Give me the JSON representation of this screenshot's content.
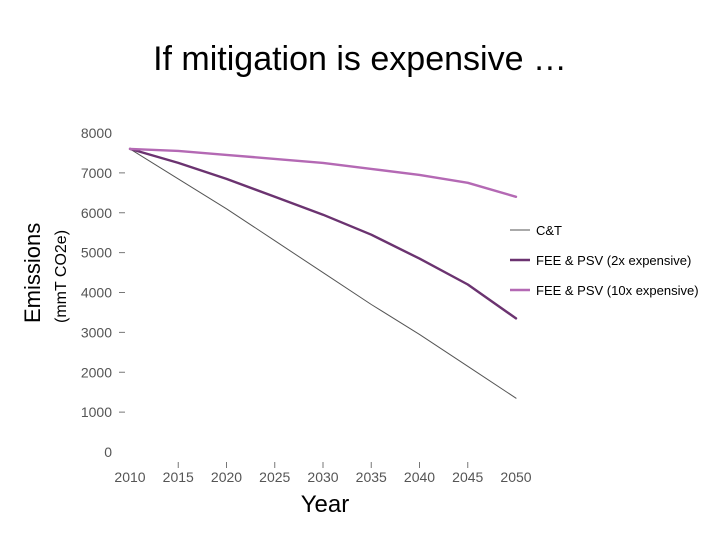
{
  "slide": {
    "title": "If mitigation is expensive …"
  },
  "chart_data": {
    "type": "line",
    "title": "If mitigation is expensive …",
    "xlabel": "Year",
    "ylabel": "Emissions",
    "ylabel_unit": "(mmT CO2e)",
    "xlim": [
      2010,
      2050
    ],
    "ylim": [
      0,
      8000
    ],
    "x_ticks": [
      "2010",
      "2015",
      "2020",
      "2025",
      "2030",
      "2035",
      "2040",
      "2045",
      "2050"
    ],
    "y_ticks": [
      "0",
      "1000",
      "2000",
      "3000",
      "4000",
      "5000",
      "6000",
      "7000",
      "8000"
    ],
    "x": [
      2010,
      2015,
      2020,
      2025,
      2030,
      2035,
      2040,
      2045,
      2050
    ],
    "grid": false,
    "legend_position": "right",
    "series": [
      {
        "name": "C&T",
        "color": "#555555",
        "values": [
          7600,
          6850,
          6100,
          5300,
          4500,
          3700,
          2950,
          2150,
          1350
        ]
      },
      {
        "name": "FEE & PSV (2x expensive)",
        "color": "#6b3370",
        "values": [
          7600,
          7250,
          6850,
          6400,
          5950,
          5450,
          4850,
          4200,
          3350
        ]
      },
      {
        "name": "FEE & PSV (10x expensive)",
        "color": "#b469b4",
        "values": [
          7600,
          7550,
          7450,
          7350,
          7250,
          7100,
          6950,
          6750,
          6400
        ]
      }
    ]
  }
}
